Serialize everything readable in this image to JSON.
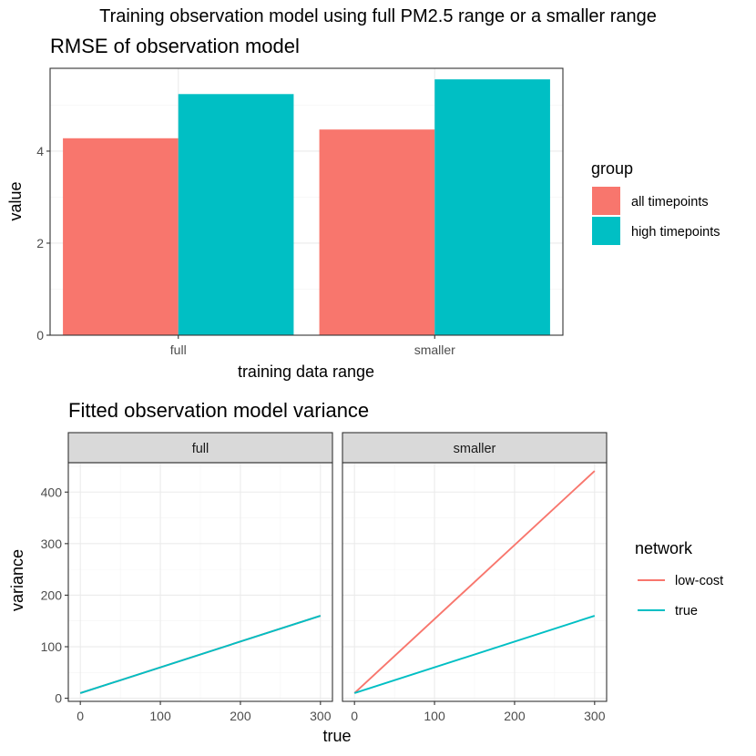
{
  "figure": {
    "title": "Training observation model using full PM2.5 range or a smaller range"
  },
  "chart_data": [
    {
      "type": "bar",
      "title": "RMSE of observation model",
      "xlabel": "training data range",
      "ylabel": "value",
      "categories": [
        "full",
        "smaller"
      ],
      "series": [
        {
          "name": "all timepoints",
          "values": [
            4.28,
            4.47
          ],
          "color": "#F8766D"
        },
        {
          "name": "high timepoints",
          "values": [
            5.24,
            5.56
          ],
          "color": "#00BFC4"
        }
      ],
      "ylim": [
        0,
        5.8
      ],
      "yticks": [
        0,
        2,
        4
      ],
      "grid": true,
      "legend": {
        "title": "group",
        "position": "right"
      }
    },
    {
      "type": "line",
      "title": "Fitted observation model variance",
      "xlabel": "true",
      "ylabel": "variance",
      "facets": [
        {
          "label": "full",
          "series": [
            {
              "name": "low-cost",
              "x": [
                0,
                300
              ],
              "y": [
                10,
                160
              ],
              "color": "#F8766D"
            },
            {
              "name": "true",
              "x": [
                0,
                300
              ],
              "y": [
                10,
                160
              ],
              "color": "#00BFC4"
            }
          ]
        },
        {
          "label": "smaller",
          "series": [
            {
              "name": "low-cost",
              "x": [
                0,
                300
              ],
              "y": [
                10,
                441
              ],
              "color": "#F8766D"
            },
            {
              "name": "true",
              "x": [
                0,
                300
              ],
              "y": [
                10,
                160
              ],
              "color": "#00BFC4"
            }
          ]
        }
      ],
      "xlim": [
        -15,
        315
      ],
      "ylim": [
        -6,
        457
      ],
      "xticks": [
        0,
        100,
        200,
        300
      ],
      "yticks": [
        0,
        100,
        200,
        300,
        400
      ],
      "grid": true,
      "legend": {
        "title": "network",
        "position": "right"
      }
    }
  ]
}
